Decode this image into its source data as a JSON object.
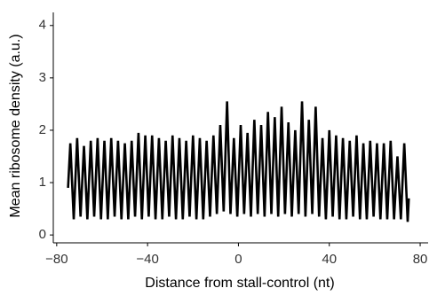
{
  "chart_data": {
    "type": "line",
    "x_label": "Distance from stall-control (nt)",
    "y_label": "Mean ribosome density (a.u.)",
    "xlim": [
      -81.5,
      83.5
    ],
    "ylim": [
      -0.15,
      4.25
    ],
    "xticks": [
      {
        "value": -80,
        "label": "−80"
      },
      {
        "value": -40,
        "label": "−40"
      },
      0,
      40,
      80
    ],
    "yticks": [
      0,
      1,
      2,
      3,
      4
    ],
    "grid": false,
    "x": [
      -75,
      -74,
      -72.5,
      -71,
      -69.5,
      -68,
      -66.5,
      -65,
      -63.5,
      -62,
      -60.5,
      -59,
      -57.5,
      -56,
      -54.5,
      -53,
      -51.5,
      -50,
      -48.5,
      -47,
      -45.5,
      -44,
      -42.5,
      -41,
      -39.5,
      -38,
      -36.5,
      -35,
      -33.5,
      -32,
      -30.5,
      -29,
      -27.5,
      -26,
      -24.5,
      -23,
      -21.5,
      -20,
      -18.5,
      -17,
      -15.5,
      -14,
      -12.5,
      -11,
      -9.5,
      -8,
      -6.5,
      -5,
      -3.5,
      -2,
      -0.5,
      1,
      2.5,
      4,
      5.5,
      7,
      8.5,
      10,
      11.5,
      13,
      14.5,
      16,
      17.5,
      19,
      20.5,
      22,
      23.5,
      25,
      26.5,
      28,
      29.5,
      31,
      32.5,
      34,
      35.5,
      37,
      38.5,
      40,
      41.5,
      43,
      44.5,
      46,
      47.5,
      49,
      50.5,
      52,
      53.5,
      55,
      56.5,
      58,
      59.5,
      61,
      62.5,
      64,
      65.5,
      67,
      68.5,
      70,
      71.5,
      73,
      74.5,
      75
    ],
    "series": [
      {
        "name": "density",
        "color": "#000000",
        "values": [
          0.9,
          1.75,
          0.3,
          1.85,
          0.35,
          1.7,
          0.3,
          1.8,
          0.35,
          1.85,
          0.3,
          1.8,
          0.3,
          1.85,
          0.35,
          1.8,
          0.3,
          1.75,
          0.3,
          1.8,
          0.35,
          1.95,
          0.3,
          1.9,
          0.35,
          1.9,
          0.3,
          1.85,
          0.3,
          1.8,
          0.35,
          1.9,
          0.3,
          1.85,
          0.3,
          1.8,
          0.35,
          1.9,
          0.3,
          1.85,
          0.3,
          1.8,
          0.35,
          1.9,
          0.4,
          2.1,
          0.45,
          2.55,
          0.4,
          1.85,
          0.35,
          2.1,
          0.4,
          1.95,
          0.35,
          2.2,
          0.4,
          2.1,
          0.35,
          2.35,
          0.4,
          2.25,
          0.35,
          2.45,
          0.4,
          2.15,
          0.35,
          2.0,
          0.4,
          2.55,
          0.35,
          2.2,
          0.4,
          2.45,
          0.35,
          1.85,
          0.3,
          2.0,
          0.35,
          1.9,
          0.3,
          1.85,
          0.3,
          1.8,
          0.35,
          1.9,
          0.3,
          1.75,
          0.3,
          1.8,
          0.35,
          1.75,
          0.3,
          1.75,
          0.3,
          1.8,
          0.3,
          1.5,
          0.3,
          1.75,
          0.25,
          0.7
        ]
      }
    ]
  }
}
